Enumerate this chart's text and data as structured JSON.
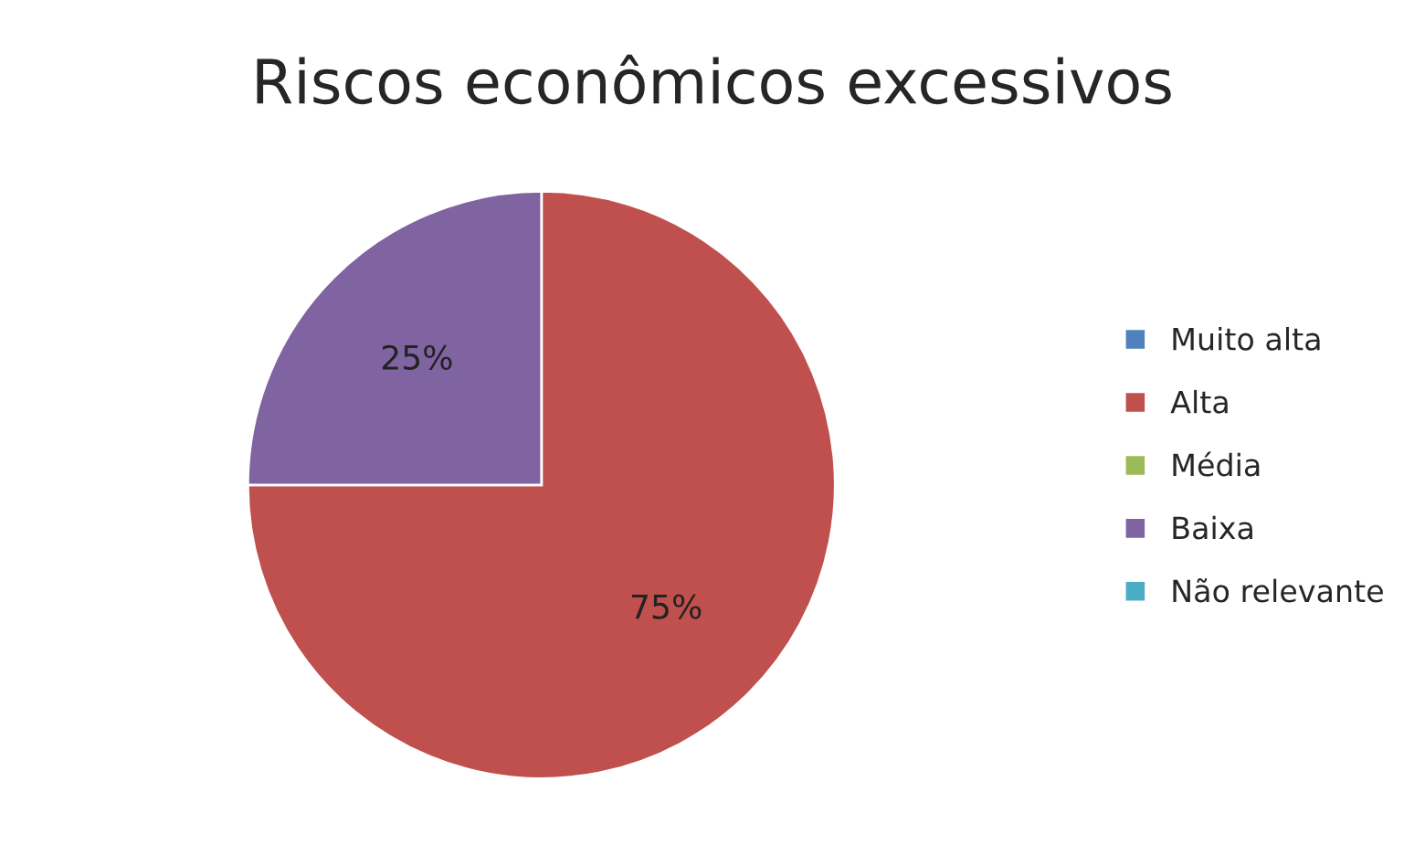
{
  "chart_data": {
    "type": "pie",
    "title": "Riscos econômicos excessivos",
    "categories": [
      "Muito alta",
      "Alta",
      "Média",
      "Baixa",
      "Não relevante"
    ],
    "values": [
      0,
      75,
      0,
      25,
      0
    ],
    "colors": [
      "#4f81bd",
      "#c0504d",
      "#9bbb59",
      "#8064a2",
      "#4bacc6"
    ],
    "value_labels": [
      null,
      "75%",
      null,
      "25%",
      null
    ],
    "legend": "right"
  }
}
